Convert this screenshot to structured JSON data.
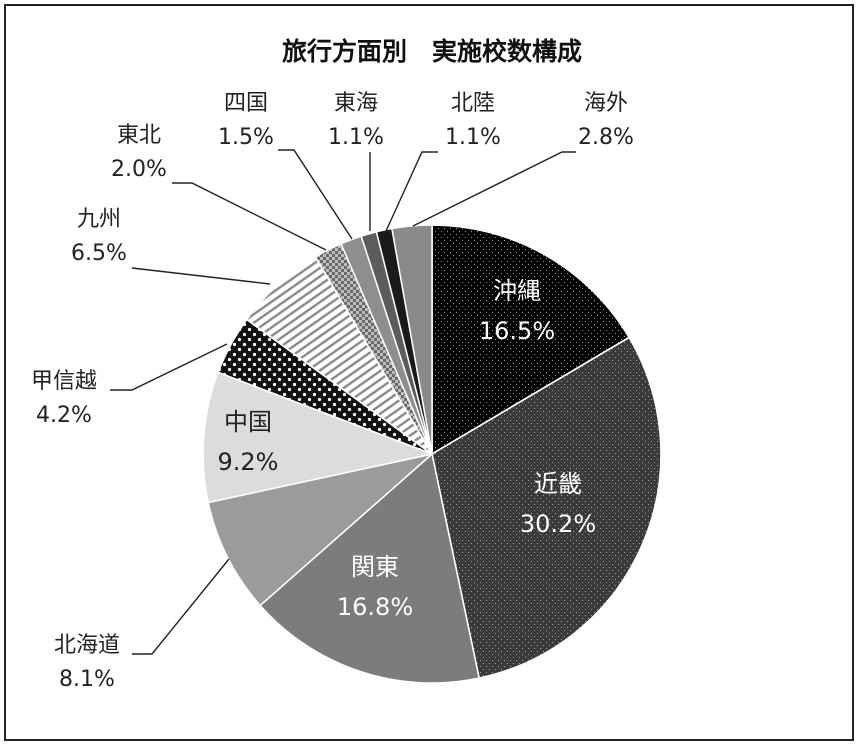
{
  "chart_data": {
    "type": "pie",
    "title": "旅行方面別　実施校数構成",
    "start_angle_deg": 0,
    "direction": "clockwise",
    "slices": [
      {
        "label": "沖縄",
        "value_label": "16.5%",
        "value": 16.5,
        "color": "#000000",
        "pattern": "dots-light",
        "text_color": "#ffffff",
        "label_position": "inside"
      },
      {
        "label": "近畿",
        "value_label": "30.2%",
        "value": 30.2,
        "color": "#3a3a3a",
        "pattern": "dots-light",
        "text_color": "#ffffff",
        "label_position": "inside"
      },
      {
        "label": "関東",
        "value_label": "16.8%",
        "value": 16.8,
        "color": "#7c7c7c",
        "pattern": "none",
        "text_color": "#ffffff",
        "label_position": "inside"
      },
      {
        "label": "北海道",
        "value_label": "8.1%",
        "value": 8.1,
        "color": "#9b9b9b",
        "pattern": "none",
        "text_color": "#222222",
        "label_position": "outside"
      },
      {
        "label": "中国",
        "value_label": "9.2%",
        "value": 9.2,
        "color": "#dcdcdc",
        "pattern": "none",
        "text_color": "#222222",
        "label_position": "inside"
      },
      {
        "label": "甲信越",
        "value_label": "4.2%",
        "value": 4.2,
        "color": "#111111",
        "pattern": "dots-white",
        "text_color": "#222222",
        "label_position": "outside"
      },
      {
        "label": "九州",
        "value_label": "6.5%",
        "value": 6.5,
        "color": "#ffffff",
        "pattern": "diagonal-stripes",
        "text_color": "#222222",
        "label_position": "outside"
      },
      {
        "label": "東北",
        "value_label": "2.0%",
        "value": 2.0,
        "color": "#bdbdbd",
        "pattern": "checker",
        "text_color": "#222222",
        "label_position": "outside"
      },
      {
        "label": "四国",
        "value_label": "1.5%",
        "value": 1.5,
        "color": "#8e8e8e",
        "pattern": "none",
        "text_color": "#222222",
        "label_position": "outside"
      },
      {
        "label": "東海",
        "value_label": "1.1%",
        "value": 1.1,
        "color": "#5c5c5c",
        "pattern": "none",
        "text_color": "#222222",
        "label_position": "outside"
      },
      {
        "label": "北陸",
        "value_label": "1.1%",
        "value": 1.1,
        "color": "#1a1a1a",
        "pattern": "none",
        "text_color": "#222222",
        "label_position": "outside"
      },
      {
        "label": "海外",
        "value_label": "2.8%",
        "value": 2.8,
        "color": "#8a8a8a",
        "pattern": "none",
        "text_color": "#222222",
        "label_position": "outside"
      }
    ]
  }
}
